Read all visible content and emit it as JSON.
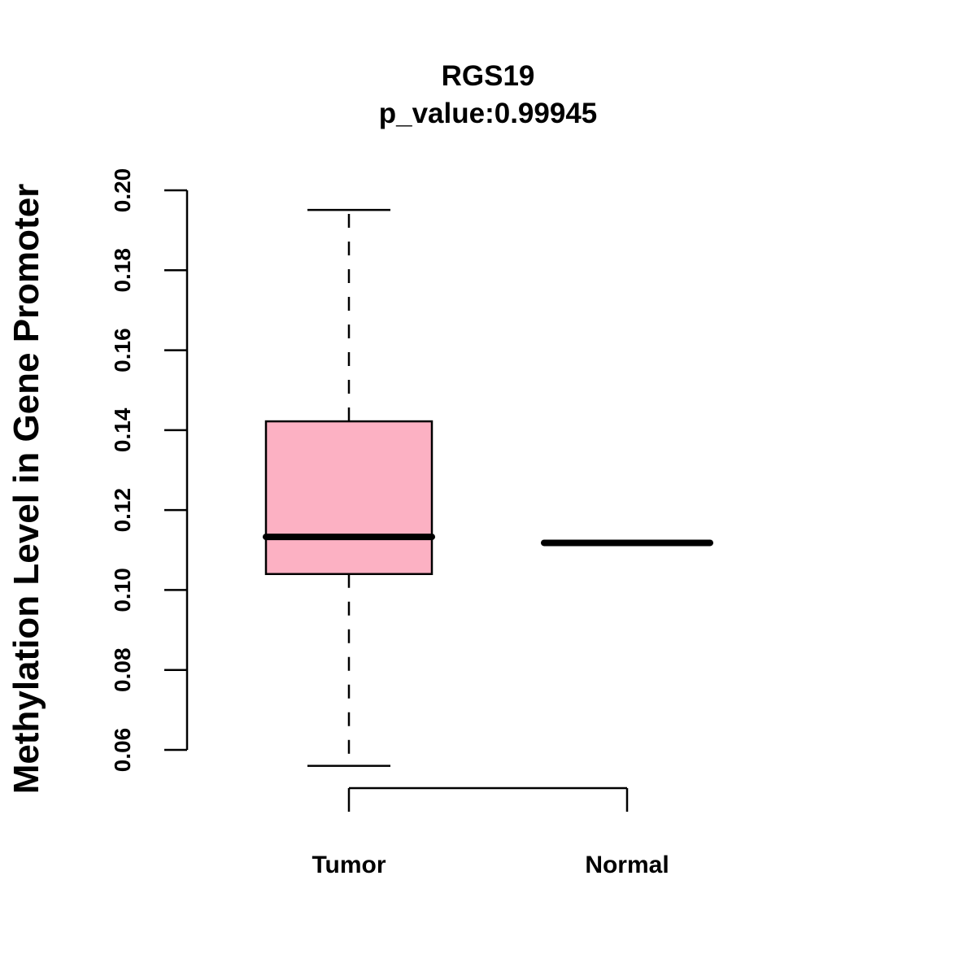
{
  "chart_data": {
    "type": "box",
    "title": "RGS19",
    "subtitle": "p_value:0.99945",
    "xlabel": "",
    "ylabel": "Methylation Level in Gene Promoter",
    "ylim": [
      0.06,
      0.2
    ],
    "yticks": [
      "0.06",
      "0.08",
      "0.10",
      "0.12",
      "0.14",
      "0.16",
      "0.18",
      "0.20"
    ],
    "categories": [
      "Tumor",
      "Normal"
    ],
    "series": [
      {
        "whisker_low": 0.056,
        "q1": 0.104,
        "median": 0.1133,
        "q3": 0.1422,
        "whisker_high": 0.1951,
        "fill": "#fcb1c3"
      },
      {
        "whisker_low": 0.1118,
        "q1": 0.1118,
        "median": 0.1118,
        "q3": 0.1118,
        "whisker_high": 0.1118,
        "fill": "#ffffff"
      }
    ],
    "grid": false,
    "legend": "none"
  }
}
